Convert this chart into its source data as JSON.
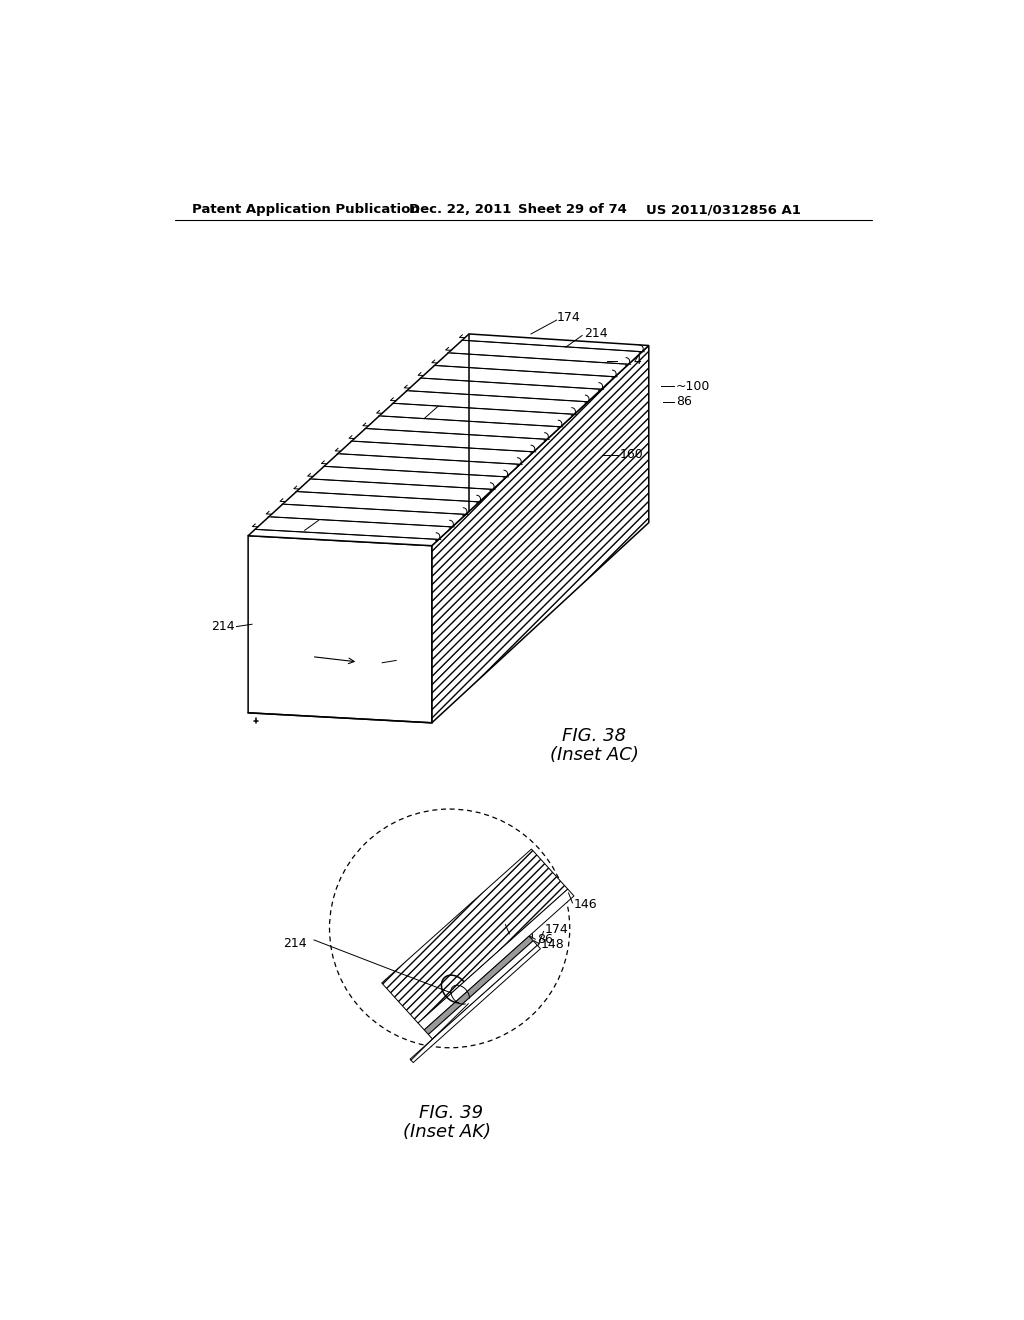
{
  "header_left": "Patent Application Publication",
  "header_date": "Dec. 22, 2011",
  "header_sheet": "Sheet 29 of 74",
  "header_right": "US 2011/0312856 A1",
  "fig38_caption": "FIG. 38",
  "fig38_subcaption": "(Inset AC)",
  "fig39_caption": "FIG. 39",
  "fig39_subcaption": "(Inset AK)",
  "bg_color": "#ffffff",
  "line_color": "#000000"
}
